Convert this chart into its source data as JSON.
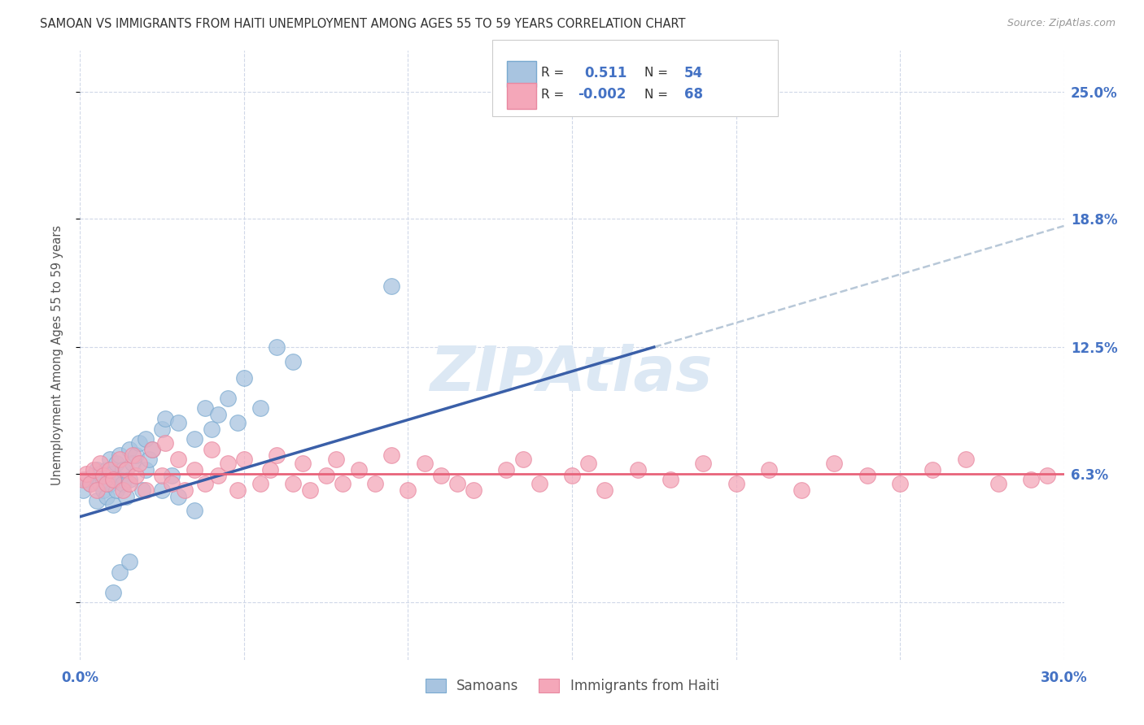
{
  "title": "SAMOAN VS IMMIGRANTS FROM HAITI UNEMPLOYMENT AMONG AGES 55 TO 59 YEARS CORRELATION CHART",
  "source": "Source: ZipAtlas.com",
  "ylabel": "Unemployment Among Ages 55 to 59 years",
  "xlim": [
    0.0,
    0.3
  ],
  "ylim": [
    -0.028,
    0.27
  ],
  "yticks": [
    0.0,
    0.063,
    0.125,
    0.188,
    0.25
  ],
  "ytick_labels": [
    "",
    "6.3%",
    "12.5%",
    "18.8%",
    "25.0%"
  ],
  "xticks": [
    0.0,
    0.05,
    0.1,
    0.15,
    0.2,
    0.25,
    0.3
  ],
  "xtick_labels": [
    "0.0%",
    "",
    "",
    "",
    "",
    "",
    "30.0%"
  ],
  "samoans_R": 0.511,
  "samoans_N": 54,
  "haiti_R": -0.002,
  "haiti_N": 68,
  "samoan_color": "#a8c4e0",
  "haiti_color": "#f4a7b9",
  "samoan_line_color": "#3a5fa8",
  "haiti_line_color": "#e8637a",
  "trend_line_color": "#b8c8d8",
  "background_color": "#ffffff",
  "grid_color": "#d0d8e8",
  "watermark_color": "#dce8f4",
  "legend_blue_color": "#4472c4",
  "samoan_line_start_y": 0.042,
  "samoan_line_end_x": 0.175,
  "samoan_line_end_y": 0.125,
  "samoan_line_slope": 0.4743,
  "haiti_line_y": 0.063,
  "samoans_x": [
    0.001,
    0.002,
    0.003,
    0.004,
    0.005,
    0.005,
    0.006,
    0.006,
    0.007,
    0.007,
    0.008,
    0.008,
    0.009,
    0.009,
    0.01,
    0.01,
    0.011,
    0.011,
    0.012,
    0.012,
    0.013,
    0.013,
    0.014,
    0.015,
    0.015,
    0.016,
    0.017,
    0.018,
    0.019,
    0.02,
    0.02,
    0.021,
    0.022,
    0.025,
    0.025,
    0.026,
    0.028,
    0.03,
    0.03,
    0.035,
    0.035,
    0.038,
    0.04,
    0.042,
    0.045,
    0.048,
    0.05,
    0.055,
    0.06,
    0.065,
    0.01,
    0.012,
    0.015,
    0.095
  ],
  "samoans_y": [
    0.055,
    0.06,
    0.058,
    0.062,
    0.05,
    0.065,
    0.058,
    0.063,
    0.055,
    0.06,
    0.052,
    0.065,
    0.058,
    0.07,
    0.048,
    0.063,
    0.055,
    0.068,
    0.06,
    0.072,
    0.058,
    0.065,
    0.052,
    0.06,
    0.075,
    0.068,
    0.072,
    0.078,
    0.055,
    0.065,
    0.08,
    0.07,
    0.075,
    0.085,
    0.055,
    0.09,
    0.062,
    0.088,
    0.052,
    0.08,
    0.045,
    0.095,
    0.085,
    0.092,
    0.1,
    0.088,
    0.11,
    0.095,
    0.125,
    0.118,
    0.005,
    0.015,
    0.02,
    0.155
  ],
  "haiti_x": [
    0.001,
    0.002,
    0.003,
    0.004,
    0.005,
    0.006,
    0.007,
    0.008,
    0.009,
    0.01,
    0.012,
    0.013,
    0.014,
    0.015,
    0.016,
    0.017,
    0.018,
    0.02,
    0.022,
    0.025,
    0.026,
    0.028,
    0.03,
    0.032,
    0.035,
    0.038,
    0.04,
    0.042,
    0.045,
    0.048,
    0.05,
    0.055,
    0.058,
    0.06,
    0.065,
    0.068,
    0.07,
    0.075,
    0.078,
    0.08,
    0.085,
    0.09,
    0.095,
    0.1,
    0.105,
    0.11,
    0.115,
    0.12,
    0.13,
    0.135,
    0.14,
    0.15,
    0.155,
    0.16,
    0.17,
    0.18,
    0.19,
    0.2,
    0.21,
    0.22,
    0.23,
    0.24,
    0.25,
    0.26,
    0.27,
    0.28,
    0.29,
    0.295
  ],
  "haiti_y": [
    0.06,
    0.063,
    0.058,
    0.065,
    0.055,
    0.068,
    0.062,
    0.058,
    0.065,
    0.06,
    0.07,
    0.055,
    0.065,
    0.058,
    0.072,
    0.062,
    0.068,
    0.055,
    0.075,
    0.062,
    0.078,
    0.058,
    0.07,
    0.055,
    0.065,
    0.058,
    0.075,
    0.062,
    0.068,
    0.055,
    0.07,
    0.058,
    0.065,
    0.072,
    0.058,
    0.068,
    0.055,
    0.062,
    0.07,
    0.058,
    0.065,
    0.058,
    0.072,
    0.055,
    0.068,
    0.062,
    0.058,
    0.055,
    0.065,
    0.07,
    0.058,
    0.062,
    0.068,
    0.055,
    0.065,
    0.06,
    0.068,
    0.058,
    0.065,
    0.055,
    0.068,
    0.062,
    0.058,
    0.065,
    0.07,
    0.058,
    0.06,
    0.062
  ]
}
